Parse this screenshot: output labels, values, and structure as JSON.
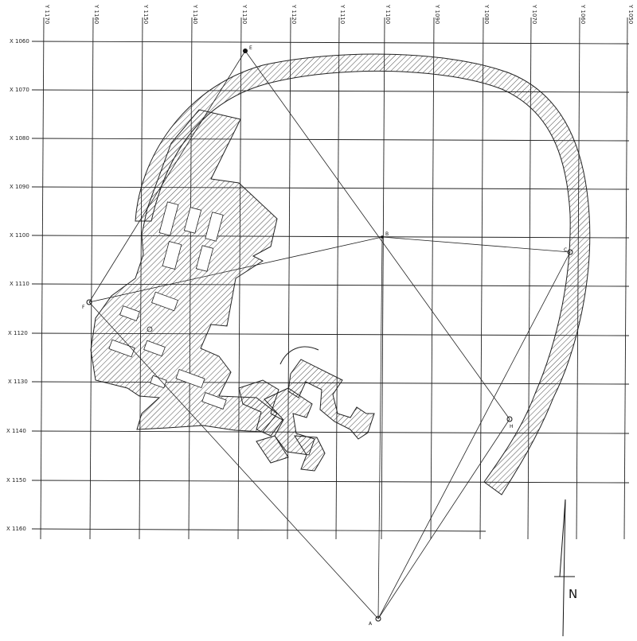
{
  "y_labels": [
    "Y 1170",
    "Y 1160",
    "Y 1150",
    "Y 1140",
    "Y 1130",
    "Y 1120",
    "Y 1110",
    "Y 1100",
    "Y 1090",
    "Y 1080",
    "Y 1070",
    "Y 1060",
    "Y 1050"
  ],
  "x_labels": [
    "X 1060",
    "X 1070",
    "X 1080",
    "X 1090",
    "X 1100",
    "X 1110",
    "X 1120",
    "X 1130",
    "X 1140",
    "X 1150",
    "X 1160"
  ],
  "points": {
    "E": "E",
    "B": "B",
    "C": "C",
    "F": "F",
    "H": "H",
    "A": "A"
  },
  "north_label": "N"
}
